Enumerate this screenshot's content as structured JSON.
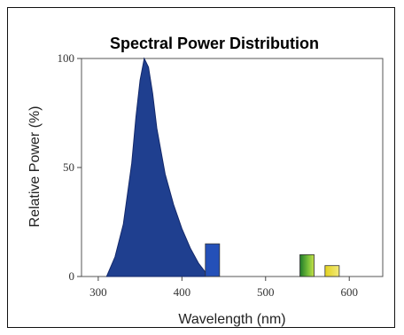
{
  "chart_data": {
    "type": "area",
    "title": "Spectral Power Distribution",
    "xlabel": "Wavelength (nm)",
    "ylabel": "Relative Power (%)",
    "xlim": [
      280,
      640
    ],
    "ylim": [
      0,
      100
    ],
    "xticks": [
      300,
      400,
      500,
      600
    ],
    "yticks": [
      0,
      50,
      100
    ],
    "grid": false,
    "series": [
      {
        "type": "area",
        "color": "#1f3f8f",
        "points": [
          [
            310,
            0
          ],
          [
            320,
            9
          ],
          [
            330,
            24
          ],
          [
            340,
            52
          ],
          [
            345,
            73
          ],
          [
            350,
            90
          ],
          [
            355,
            100
          ],
          [
            360,
            96
          ],
          [
            365,
            84
          ],
          [
            370,
            68
          ],
          [
            380,
            47
          ],
          [
            390,
            33
          ],
          [
            400,
            22
          ],
          [
            410,
            13
          ],
          [
            420,
            6
          ],
          [
            430,
            1
          ],
          [
            432,
            0
          ]
        ]
      }
    ],
    "bars": [
      {
        "x_start": 428,
        "x_end": 445,
        "value": 15,
        "color": "#2450b8"
      },
      {
        "x_start": 541,
        "x_end": 558,
        "value": 10,
        "color": "#5fb336"
      },
      {
        "x_start": 571,
        "x_end": 588,
        "value": 5,
        "color": "#e6d62a"
      }
    ]
  }
}
